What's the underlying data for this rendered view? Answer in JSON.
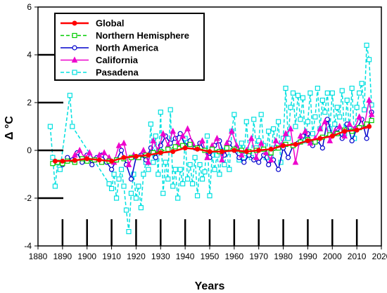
{
  "chart_data": {
    "type": "line",
    "title": "",
    "xlabel": "Years",
    "ylabel": "Δ °C",
    "xlim": [
      1880,
      2020
    ],
    "ylim": [
      -4,
      6
    ],
    "xticks": [
      "1880",
      "1890",
      "1900",
      "1910",
      "1920",
      "1930",
      "1940",
      "1950",
      "1960",
      "1970",
      "1980",
      "1990",
      "2000",
      "2010",
      "2020"
    ],
    "yticks": [
      "-4",
      "-2",
      "0",
      "2",
      "4",
      "6"
    ],
    "grid": false,
    "legend_position": "top-left",
    "series": [
      {
        "name": "Global",
        "color": "#ff0000",
        "marker": "circle",
        "dash": "solid",
        "x": [
          1887,
          1890,
          1895,
          1900,
          1905,
          1910,
          1915,
          1920,
          1925,
          1930,
          1935,
          1940,
          1945,
          1950,
          1955,
          1960,
          1965,
          1970,
          1975,
          1980,
          1985,
          1990,
          1995,
          2000,
          2005,
          2010,
          2015
        ],
        "values": [
          -0.45,
          -0.45,
          -0.42,
          -0.35,
          -0.4,
          -0.45,
          -0.3,
          -0.25,
          -0.2,
          -0.1,
          -0.05,
          0.1,
          0.05,
          -0.05,
          -0.05,
          0.0,
          -0.05,
          0.0,
          0.05,
          0.2,
          0.25,
          0.4,
          0.5,
          0.6,
          0.8,
          0.85,
          1.0
        ]
      },
      {
        "name": "Northern Hemisphere",
        "color": "#00cc00",
        "marker": "square-open",
        "dash": "dashed",
        "x": [
          1886,
          1888,
          1890,
          1892,
          1895,
          1898,
          1900,
          1903,
          1906,
          1909,
          1912,
          1915,
          1918,
          1921,
          1924,
          1927,
          1930,
          1933,
          1936,
          1939,
          1942,
          1945,
          1948,
          1951,
          1954,
          1957,
          1960,
          1963,
          1966,
          1969,
          1972,
          1975,
          1978,
          1981,
          1984,
          1987,
          1990,
          1993,
          1996,
          1999,
          2002,
          2005,
          2008,
          2011,
          2014,
          2016
        ],
        "values": [
          -0.55,
          -0.5,
          -0.55,
          -0.45,
          -0.5,
          -0.35,
          -0.45,
          -0.4,
          -0.5,
          -0.45,
          -0.4,
          -0.35,
          -0.3,
          -0.3,
          -0.2,
          -0.1,
          -0.05,
          0.05,
          0.15,
          0.2,
          0.25,
          0.1,
          0.0,
          0.05,
          -0.05,
          0.1,
          0.05,
          0.0,
          -0.05,
          0.0,
          0.05,
          -0.1,
          0.1,
          0.25,
          0.2,
          0.35,
          0.45,
          0.35,
          0.55,
          0.65,
          0.7,
          0.85,
          0.8,
          0.95,
          1.1,
          1.25
        ]
      },
      {
        "name": "North America",
        "color": "#0000cc",
        "marker": "circle-open",
        "dash": "solid",
        "x": [
          1890,
          1892,
          1894,
          1896,
          1898,
          1900,
          1902,
          1904,
          1906,
          1908,
          1910,
          1912,
          1914,
          1916,
          1918,
          1920,
          1922,
          1924,
          1926,
          1928,
          1930,
          1932,
          1934,
          1936,
          1938,
          1940,
          1942,
          1944,
          1946,
          1948,
          1950,
          1952,
          1954,
          1956,
          1958,
          1960,
          1962,
          1964,
          1966,
          1968,
          1970,
          1972,
          1974,
          1976,
          1978,
          1980,
          1982,
          1984,
          1986,
          1988,
          1990,
          1992,
          1994,
          1996,
          1998,
          2000,
          2002,
          2004,
          2006,
          2008,
          2010,
          2012,
          2014,
          2016
        ],
        "values": [
          -0.6,
          -0.3,
          -0.4,
          -0.1,
          -0.5,
          -0.2,
          -0.6,
          -0.3,
          -0.2,
          -0.5,
          -0.8,
          -0.4,
          0.0,
          -0.6,
          -1.2,
          -0.3,
          -0.2,
          -0.4,
          0.1,
          -0.3,
          0.2,
          0.6,
          0.3,
          0.5,
          0.7,
          0.2,
          0.4,
          0.1,
          0.3,
          0.0,
          -0.3,
          0.2,
          0.4,
          -0.2,
          0.3,
          0.0,
          -0.3,
          -0.5,
          -0.2,
          -0.4,
          -0.5,
          -0.2,
          -0.6,
          -0.4,
          -0.8,
          0.1,
          -0.3,
          0.2,
          0.3,
          0.6,
          0.7,
          0.2,
          0.4,
          0.1,
          1.3,
          0.6,
          0.9,
          0.5,
          1.1,
          0.4,
          0.9,
          1.3,
          0.5,
          1.6
        ]
      },
      {
        "name": "California",
        "color": "#ee00cc",
        "marker": "triangle",
        "dash": "solid",
        "x": [
          1895,
          1897,
          1899,
          1901,
          1903,
          1905,
          1907,
          1909,
          1911,
          1913,
          1915,
          1917,
          1919,
          1921,
          1923,
          1925,
          1927,
          1929,
          1931,
          1933,
          1935,
          1937,
          1939,
          1941,
          1943,
          1945,
          1947,
          1949,
          1951,
          1953,
          1955,
          1957,
          1959,
          1961,
          1963,
          1965,
          1967,
          1969,
          1971,
          1973,
          1975,
          1977,
          1979,
          1981,
          1983,
          1985,
          1987,
          1989,
          1991,
          1993,
          1995,
          1997,
          1999,
          2001,
          2003,
          2005,
          2007,
          2009,
          2011,
          2013,
          2015,
          2016
        ],
        "values": [
          -0.2,
          0.0,
          -0.3,
          -0.1,
          -0.4,
          -0.2,
          -0.1,
          -0.3,
          -0.5,
          0.2,
          0.3,
          -0.6,
          -0.2,
          -0.3,
          0.0,
          -0.5,
          0.4,
          0.0,
          0.7,
          0.2,
          0.8,
          0.3,
          0.6,
          0.9,
          0.3,
          0.1,
          0.4,
          -0.3,
          0.2,
          0.5,
          -0.4,
          0.3,
          0.8,
          0.2,
          -0.2,
          0.0,
          0.5,
          -0.3,
          0.3,
          -0.1,
          -0.4,
          0.4,
          0.2,
          0.7,
          0.9,
          -0.5,
          0.6,
          0.8,
          0.3,
          0.5,
          0.9,
          1.2,
          0.4,
          0.8,
          1.0,
          0.6,
          1.1,
          0.9,
          1.4,
          1.0,
          2.1,
          1.5
        ]
      },
      {
        "name": "Pasadena",
        "color": "#00e0e0",
        "marker": "square-open",
        "dash": "dashed",
        "x": [
          1885,
          1886,
          1887,
          1888,
          1889,
          1893,
          1894,
          1909,
          1910,
          1911,
          1912,
          1913,
          1914,
          1915,
          1916,
          1917,
          1918,
          1919,
          1920,
          1921,
          1922,
          1923,
          1924,
          1925,
          1926,
          1927,
          1928,
          1929,
          1930,
          1931,
          1932,
          1933,
          1934,
          1935,
          1936,
          1937,
          1938,
          1939,
          1940,
          1941,
          1942,
          1943,
          1944,
          1945,
          1946,
          1947,
          1948,
          1949,
          1950,
          1951,
          1952,
          1953,
          1954,
          1955,
          1956,
          1957,
          1958,
          1959,
          1960,
          1961,
          1962,
          1963,
          1964,
          1965,
          1966,
          1967,
          1968,
          1969,
          1970,
          1971,
          1972,
          1973,
          1974,
          1975,
          1976,
          1977,
          1978,
          1979,
          1980,
          1981,
          1982,
          1983,
          1984,
          1985,
          1986,
          1987,
          1988,
          1989,
          1990,
          1991,
          1992,
          1993,
          1994,
          1995,
          1996,
          1997,
          1998,
          1999,
          2000,
          2001,
          2002,
          2003,
          2004,
          2005,
          2006,
          2007,
          2008,
          2009,
          2010,
          2011,
          2012,
          2013,
          2014,
          2015,
          2016
        ],
        "values": [
          1.0,
          -0.3,
          -1.5,
          -0.5,
          -0.8,
          2.3,
          1.0,
          -1.4,
          -1.6,
          -1.0,
          -2.0,
          -1.2,
          -0.8,
          -1.5,
          -2.5,
          -3.4,
          -1.8,
          -1.0,
          -2.0,
          -1.5,
          -2.4,
          -1.0,
          -0.5,
          -0.8,
          1.1,
          -0.5,
          0.6,
          -1.0,
          1.6,
          -1.8,
          -0.5,
          -1.2,
          1.7,
          -1.5,
          -0.8,
          -2.0,
          -0.8,
          -1.4,
          0.5,
          -1.2,
          -0.6,
          -1.4,
          -0.3,
          -1.9,
          -0.6,
          -1.2,
          -0.9,
          0.6,
          -1.9,
          -0.2,
          -0.8,
          -0.2,
          -1.0,
          0.0,
          -0.6,
          -0.1,
          -0.8,
          0.8,
          1.5,
          0.1,
          -0.4,
          0.3,
          -0.3,
          1.2,
          -0.2,
          -0.3,
          1.3,
          0.1,
          0.4,
          1.5,
          0.2,
          -0.3,
          0.8,
          -0.3,
          0.9,
          0.1,
          1.2,
          -0.5,
          0.5,
          2.6,
          0.5,
          1.8,
          2.4,
          1.0,
          2.3,
          1.3,
          2.2,
          0.4,
          1.2,
          2.4,
          0.7,
          1.4,
          2.6,
          0.9,
          2.1,
          1.6,
          2.4,
          0.9,
          2.4,
          1.1,
          1.8,
          1.4,
          2.5,
          0.7,
          2.1,
          0.9,
          2.6,
          0.5,
          1.8,
          2.4,
          2.8,
          1.7,
          4.4,
          3.8,
          1.9
        ]
      }
    ]
  },
  "legend": {
    "items": [
      "Global",
      "Northern Hemisphere",
      "North America",
      "California",
      "Pasadena"
    ]
  }
}
